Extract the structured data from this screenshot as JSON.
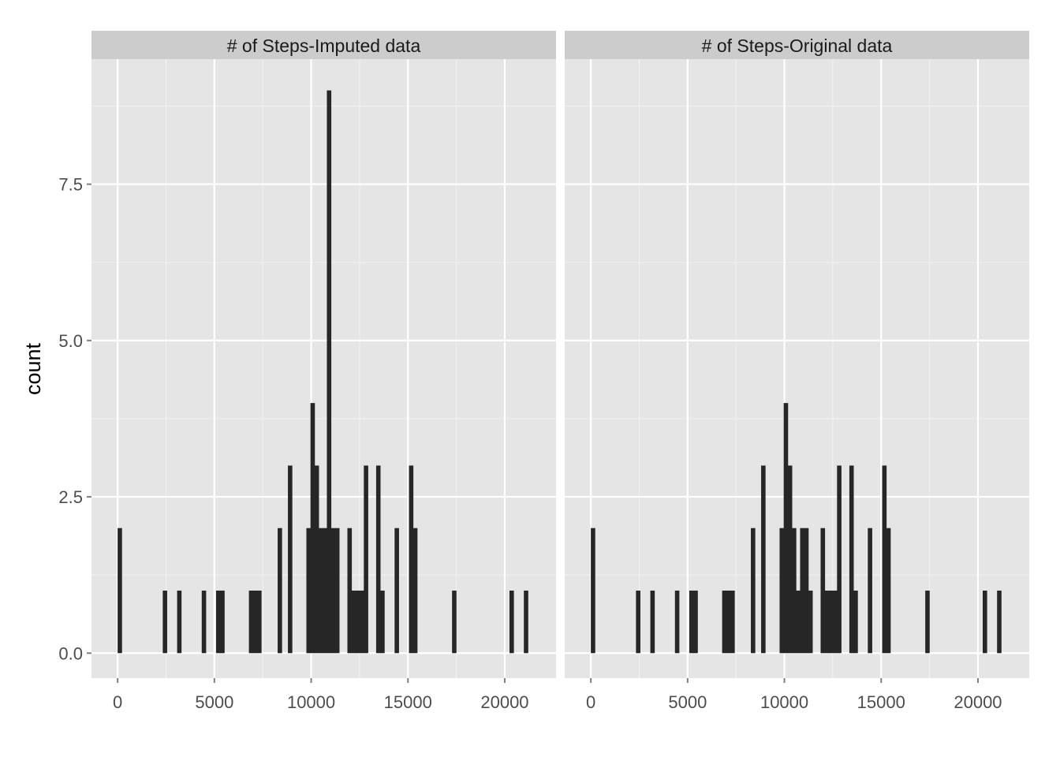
{
  "chart_data": {
    "type": "bar",
    "ylabel": "count",
    "xlabel": "",
    "xlim": [
      -1350,
      22650
    ],
    "ylim": [
      -0.4,
      9.5
    ],
    "x_ticks": [
      0,
      5000,
      10000,
      15000,
      20000
    ],
    "y_ticks": [
      0,
      2.5,
      5,
      7.5
    ],
    "x_tick_labels": [
      "0",
      "5000",
      "10000",
      "15000",
      "20000"
    ],
    "y_tick_labels": [
      "0.0",
      "2.5",
      "5.0",
      "7.5"
    ],
    "bin_width": 212,
    "grid": true,
    "colors": {
      "panel_bg": "#e5e5e5",
      "strip_bg": "#cccccc",
      "bar": "#262626",
      "grid_major": "#ffffff",
      "grid_minor": "#f2f2f2"
    },
    "panels": [
      {
        "strip": "# of Steps-Imputed data",
        "bars": [
          {
            "x": 106,
            "count": 2
          },
          {
            "x": 2438,
            "count": 1
          },
          {
            "x": 3180,
            "count": 1
          },
          {
            "x": 4452,
            "count": 1
          },
          {
            "x": 5194,
            "count": 1
          },
          {
            "x": 5406,
            "count": 1
          },
          {
            "x": 6890,
            "count": 1
          },
          {
            "x": 7102,
            "count": 1
          },
          {
            "x": 7314,
            "count": 1
          },
          {
            "x": 8374,
            "count": 2
          },
          {
            "x": 8904,
            "count": 3
          },
          {
            "x": 9858,
            "count": 2
          },
          {
            "x": 10070,
            "count": 4
          },
          {
            "x": 10282,
            "count": 3
          },
          {
            "x": 10494,
            "count": 2
          },
          {
            "x": 10706,
            "count": 2
          },
          {
            "x": 10918,
            "count": 9
          },
          {
            "x": 11130,
            "count": 2
          },
          {
            "x": 11342,
            "count": 2
          },
          {
            "x": 11978,
            "count": 2
          },
          {
            "x": 12190,
            "count": 1
          },
          {
            "x": 12402,
            "count": 1
          },
          {
            "x": 12614,
            "count": 1
          },
          {
            "x": 12826,
            "count": 3
          },
          {
            "x": 13462,
            "count": 3
          },
          {
            "x": 13674,
            "count": 1
          },
          {
            "x": 14416,
            "count": 2
          },
          {
            "x": 15158,
            "count": 3
          },
          {
            "x": 15370,
            "count": 2
          },
          {
            "x": 17384,
            "count": 1
          },
          {
            "x": 20352,
            "count": 1
          },
          {
            "x": 21094,
            "count": 1
          }
        ]
      },
      {
        "strip": "# of Steps-Original data",
        "bars": [
          {
            "x": 106,
            "count": 2
          },
          {
            "x": 2438,
            "count": 1
          },
          {
            "x": 3180,
            "count": 1
          },
          {
            "x": 4452,
            "count": 1
          },
          {
            "x": 5194,
            "count": 1
          },
          {
            "x": 5406,
            "count": 1
          },
          {
            "x": 6890,
            "count": 1
          },
          {
            "x": 7102,
            "count": 1
          },
          {
            "x": 7314,
            "count": 1
          },
          {
            "x": 8374,
            "count": 2
          },
          {
            "x": 8904,
            "count": 3
          },
          {
            "x": 9858,
            "count": 2
          },
          {
            "x": 10070,
            "count": 4
          },
          {
            "x": 10282,
            "count": 3
          },
          {
            "x": 10494,
            "count": 2
          },
          {
            "x": 10706,
            "count": 1
          },
          {
            "x": 10918,
            "count": 2
          },
          {
            "x": 11130,
            "count": 2
          },
          {
            "x": 11342,
            "count": 1
          },
          {
            "x": 11978,
            "count": 2
          },
          {
            "x": 12190,
            "count": 1
          },
          {
            "x": 12402,
            "count": 1
          },
          {
            "x": 12614,
            "count": 1
          },
          {
            "x": 12826,
            "count": 3
          },
          {
            "x": 13462,
            "count": 3
          },
          {
            "x": 13674,
            "count": 1
          },
          {
            "x": 14416,
            "count": 2
          },
          {
            "x": 15158,
            "count": 3
          },
          {
            "x": 15370,
            "count": 2
          },
          {
            "x": 17384,
            "count": 1
          },
          {
            "x": 20352,
            "count": 1
          },
          {
            "x": 21094,
            "count": 1
          }
        ]
      }
    ]
  }
}
